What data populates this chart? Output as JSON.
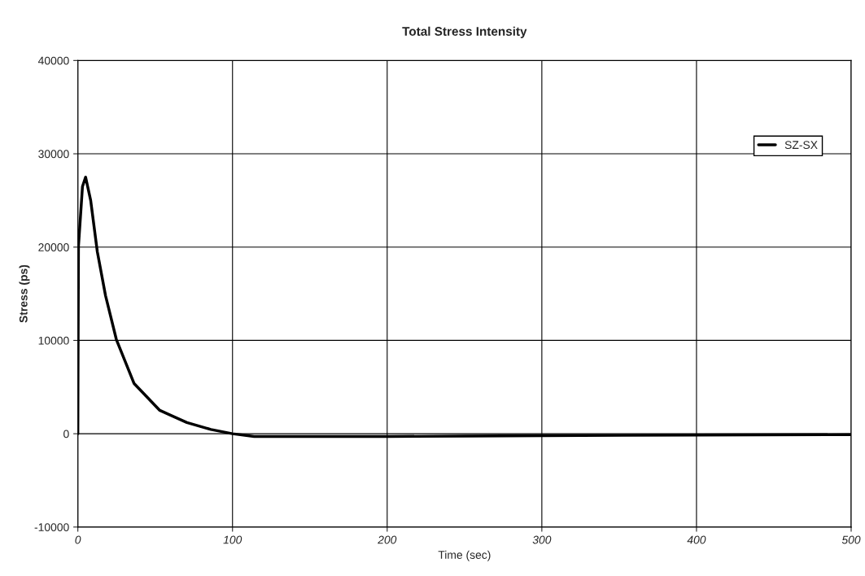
{
  "chart_data": {
    "type": "line",
    "title": "Total Stress Intensity",
    "xlabel": "Time (sec)",
    "ylabel": "Stress (ps)",
    "xlim": [
      0,
      500
    ],
    "xticks": [
      0,
      100,
      200,
      300,
      400,
      500
    ],
    "ylim": [
      -10000,
      40000
    ],
    "yticks": [
      -10000,
      0,
      10000,
      20000,
      30000,
      40000
    ],
    "grid": true,
    "legend": "top right",
    "marker": "none",
    "line_style": "solid",
    "series": [
      {
        "name": "SZ-SX",
        "color": "#000000",
        "x": [
          0,
          0.1,
          0.4,
          3,
          5,
          8.3,
          12.6,
          17.9,
          24.9,
          36.3,
          53,
          70.5,
          86,
          100,
          114,
          150,
          200,
          250,
          300,
          400,
          500
        ],
        "values": [
          0,
          6300,
          20100,
          26500,
          27500,
          25000,
          19500,
          14800,
          10100,
          5400,
          2500,
          1200,
          460,
          0,
          -300,
          -300,
          -300,
          -250,
          -200,
          -150,
          -100
        ]
      }
    ]
  }
}
